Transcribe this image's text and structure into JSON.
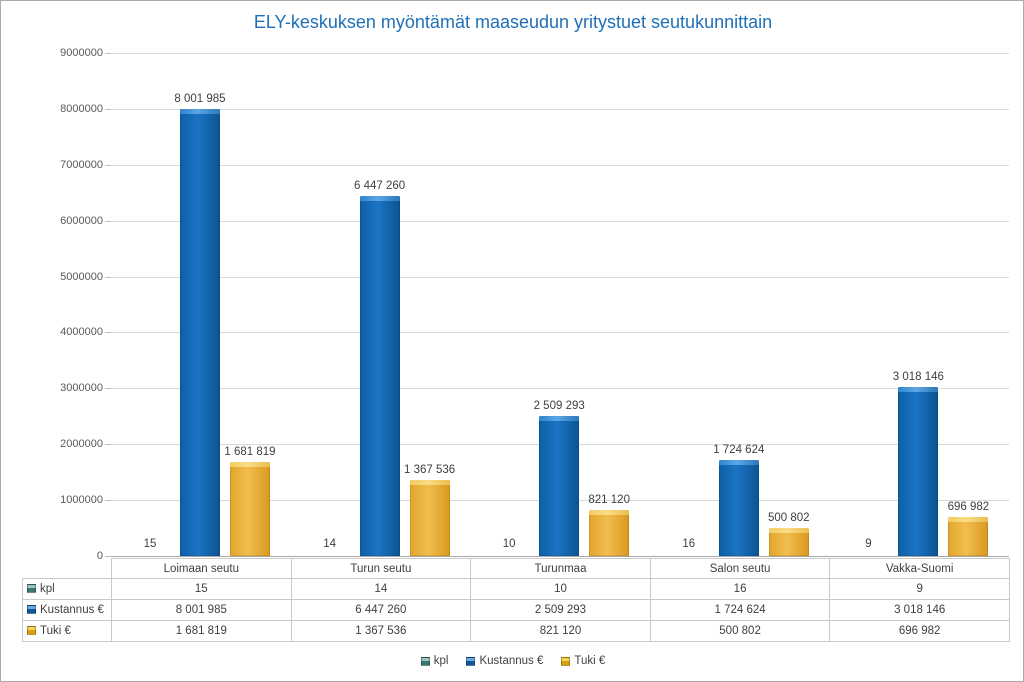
{
  "chart_data": {
    "type": "bar",
    "title": "ELY-keskuksen myöntämät maaseudun yritystuet seutukunnittain",
    "title_color": "#1F6FB8",
    "categories": [
      "Loimaan seutu",
      "Turun seutu",
      "Turunmaa",
      "Salon seutu",
      "Vakka-Suomi"
    ],
    "series": [
      {
        "name": "kpl",
        "values": [
          15,
          14,
          10,
          16,
          9
        ],
        "labels": [
          "15",
          "14",
          "10",
          "16",
          "9"
        ],
        "color": "#3A7774",
        "color_light": "#9CC2BC"
      },
      {
        "name": "Kustannus €",
        "values": [
          8001985,
          6447260,
          2509293,
          1724624,
          3018146
        ],
        "labels": [
          "8 001 985",
          "6 447 260",
          "2 509 293",
          "1 724 624",
          "3 018 146"
        ],
        "color": "#1266B4",
        "color_light": "#5CA6E4"
      },
      {
        "name": "Tuki €",
        "values": [
          1681819,
          1367536,
          821120,
          500802,
          696982
        ],
        "labels": [
          "1 681 819",
          "1 367 536",
          "821 120",
          "500 802",
          "696 982"
        ],
        "color": "#EFB93F",
        "color_light": "#F8D873"
      }
    ],
    "ylim": [
      0,
      9000000
    ],
    "ytick_step": 1000000,
    "ytick_labels": [
      "0",
      "1000000",
      "2000000",
      "3000000",
      "4000000",
      "5000000",
      "6000000",
      "7000000",
      "8000000",
      "9000000"
    ],
    "grid": true,
    "gridline_color": "#D9D9D9",
    "legend_position": "bottom",
    "legend_items": [
      "kpl",
      "Kustannus €",
      "Tuki €"
    ],
    "data_table_shown": true
  }
}
